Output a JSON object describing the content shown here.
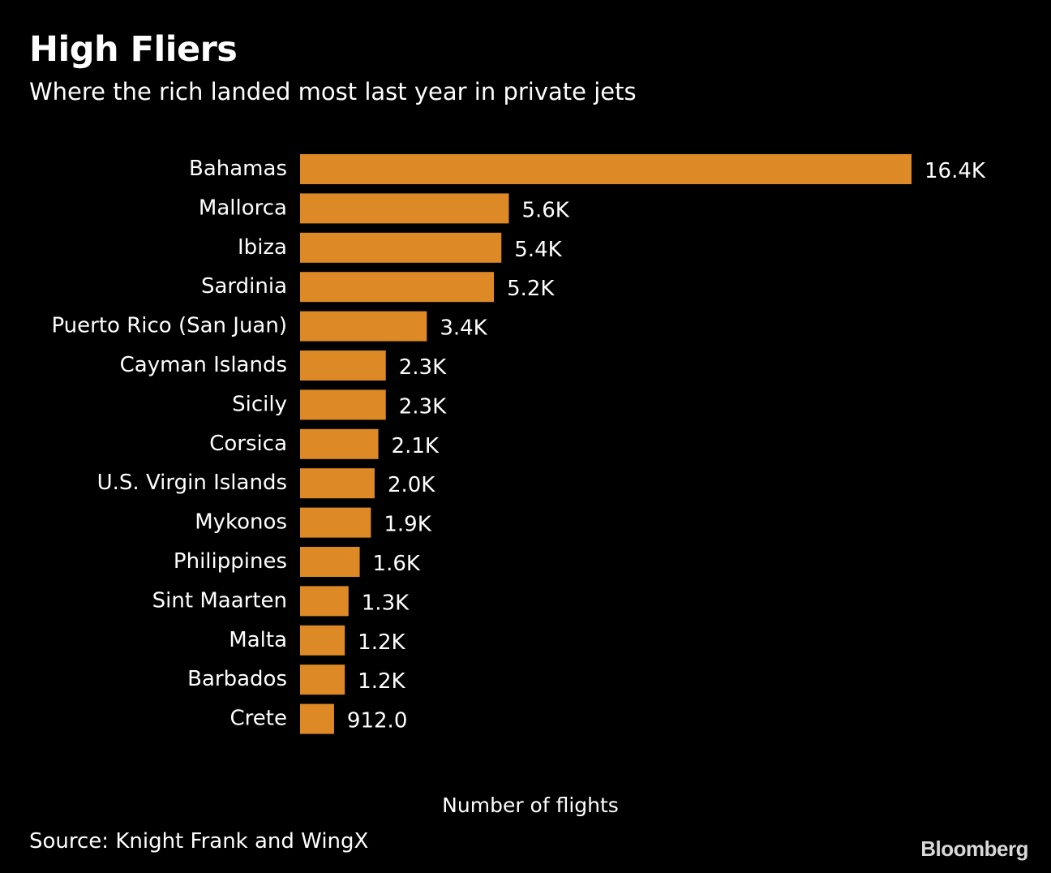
{
  "header": {
    "title": "High Fliers",
    "subtitle": "Where the rich landed most last year in private jets"
  },
  "chart_data": {
    "type": "bar",
    "orientation": "horizontal",
    "categories": [
      "Bahamas",
      "Mallorca",
      "Ibiza",
      "Sardinia",
      "Puerto Rico (San Juan)",
      "Cayman Islands",
      "Sicily",
      "Corsica",
      "U.S. Virgin Islands",
      "Mykonos",
      "Philippines",
      "Sint Maarten",
      "Malta",
      "Barbados",
      "Crete"
    ],
    "values": [
      16400,
      5600,
      5400,
      5200,
      3400,
      2300,
      2300,
      2100,
      2000,
      1900,
      1600,
      1300,
      1200,
      1200,
      912
    ],
    "value_labels": [
      "16.4K",
      "5.6K",
      "5.4K",
      "5.2K",
      "3.4K",
      "2.3K",
      "2.3K",
      "2.1K",
      "2.0K",
      "1.9K",
      "1.6K",
      "1.3K",
      "1.2K",
      "1.2K",
      "912.0"
    ],
    "xlabel": "Number of flights",
    "ylabel": "",
    "bar_color": "#dd8a26",
    "grid": false,
    "legend": "none"
  },
  "footer": {
    "source": "Source: Knight Frank and WingX",
    "logo": "Bloomberg"
  }
}
